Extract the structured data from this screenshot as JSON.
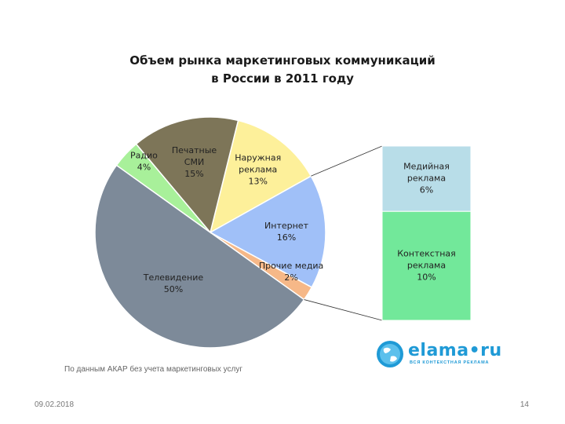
{
  "chart_data": {
    "type": "pie",
    "title_line1": "Объем рынка маркетинговых коммуникаций",
    "title_line2": "в России в 2011 году",
    "slices": [
      {
        "label": "Наружная реклама",
        "lines": [
          "Наружная",
          "реклама"
        ],
        "pct_label": "13%",
        "value": 13,
        "color": "#fdf09a"
      },
      {
        "label": "Интернет",
        "lines": [
          "Интернет"
        ],
        "pct_label": "16%",
        "value": 16,
        "color": "#a0c0f8"
      },
      {
        "label": "Прочие медиа",
        "lines": [
          "Прочие медиа"
        ],
        "pct_label": "2%",
        "value": 2,
        "color": "#f6b888"
      },
      {
        "label": "Телевидение",
        "lines": [
          "Телевидение"
        ],
        "pct_label": "50%",
        "value": 50,
        "color": "#7d8a99"
      },
      {
        "label": "Радио",
        "lines": [
          "Радио"
        ],
        "pct_label": "4%",
        "value": 4,
        "color": "#a8f09a"
      },
      {
        "label": "Печатные СМИ",
        "lines": [
          "Печатные",
          "СМИ"
        ],
        "pct_label": "15%",
        "value": 15,
        "color": "#7d7558"
      }
    ],
    "breakdown": {
      "of": "Интернет",
      "parts": [
        {
          "label": "Медийная реклама",
          "lines": [
            "Медийная",
            "реклама"
          ],
          "pct_label": "6%",
          "value": 6,
          "color": "#b8dde8"
        },
        {
          "label": "Контекстная реклама",
          "lines": [
            "Контекстная",
            "реклама"
          ],
          "pct_label": "10%",
          "value": 10,
          "color": "#72e89a"
        }
      ]
    }
  },
  "source_note": "По данным АКАР без учета маркетинговых услуг",
  "footer": {
    "date": "09.02.2018",
    "page": "14"
  },
  "logo": {
    "text": "elama•ru",
    "tagline": "ВСЯ КОНТЕКСТНАЯ РЕКЛАМА",
    "icon": "globe-icon",
    "color": "#1f9ad6"
  }
}
